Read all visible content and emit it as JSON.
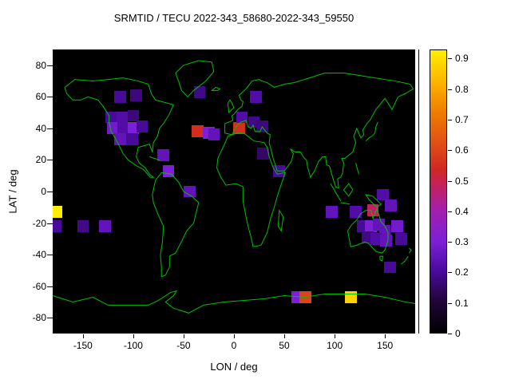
{
  "title": "SRMTID / TECU 2022-343_58680-2022-343_59550",
  "map": {
    "outline_color": "#00c000",
    "ocean_color": "#000000"
  },
  "palette": [
    [
      0.0,
      "#000000"
    ],
    [
      0.12,
      "#24053f"
    ],
    [
      0.22,
      "#4a0a9e"
    ],
    [
      0.32,
      "#7b1fd6"
    ],
    [
      0.43,
      "#a21fb0"
    ],
    [
      0.52,
      "#c42060"
    ],
    [
      0.58,
      "#d22822"
    ],
    [
      0.68,
      "#e25313"
    ],
    [
      0.78,
      "#ef7c00"
    ],
    [
      0.88,
      "#fcb000"
    ],
    [
      1.0,
      "#ffee00"
    ]
  ],
  "chart_data": {
    "type": "heatmap",
    "title": "SRMTID / TECU 2022-343_58680-2022-343_59550",
    "xlabel": "LON / deg",
    "ylabel": "LAT / deg",
    "xlim": [
      -180,
      180
    ],
    "ylim": [
      -90,
      90
    ],
    "x_ticks": [
      -150,
      -100,
      -50,
      0,
      50,
      100,
      150
    ],
    "y_ticks": [
      80,
      60,
      40,
      20,
      0,
      -20,
      -40,
      -60,
      -80
    ],
    "colorbar_ticks": [
      0,
      0.1,
      0.2,
      0.3,
      0.4,
      0.5,
      0.6,
      0.7,
      0.8,
      0.9
    ],
    "colorbar_range": [
      0,
      0.93
    ],
    "grid": false,
    "legend_position": "right-colorbar",
    "cell_size_deg": {
      "lon": 11.5,
      "lat": 7.5
    },
    "points": [
      {
        "lon": -113,
        "lat": 60,
        "value": 0.2
      },
      {
        "lon": -97,
        "lat": 61,
        "value": 0.17
      },
      {
        "lon": -34,
        "lat": 63,
        "value": 0.18
      },
      {
        "lon": 22,
        "lat": 60,
        "value": 0.22
      },
      {
        "lon": -122,
        "lat": 47,
        "value": 0.2
      },
      {
        "lon": -111,
        "lat": 47,
        "value": 0.22
      },
      {
        "lon": -100,
        "lat": 48,
        "value": 0.17
      },
      {
        "lon": -120,
        "lat": 40,
        "value": 0.28
      },
      {
        "lon": -110,
        "lat": 40,
        "value": 0.22
      },
      {
        "lon": -100,
        "lat": 40,
        "value": 0.3
      },
      {
        "lon": -91,
        "lat": 41,
        "value": 0.2
      },
      {
        "lon": -113,
        "lat": 33,
        "value": 0.25
      },
      {
        "lon": -101,
        "lat": 33,
        "value": 0.2
      },
      {
        "lon": -36,
        "lat": 38,
        "value": 0.55
      },
      {
        "lon": -25,
        "lat": 37,
        "value": 0.3
      },
      {
        "lon": -20,
        "lat": 36,
        "value": 0.25
      },
      {
        "lon": 5,
        "lat": 40,
        "value": 0.55
      },
      {
        "lon": 8,
        "lat": 47,
        "value": 0.22
      },
      {
        "lon": 20,
        "lat": 44,
        "value": 0.18
      },
      {
        "lon": 28,
        "lat": 41,
        "value": 0.17
      },
      {
        "lon": 29,
        "lat": 24,
        "value": 0.15
      },
      {
        "lon": -70,
        "lat": 23,
        "value": 0.25
      },
      {
        "lon": -65,
        "lat": 13,
        "value": 0.3
      },
      {
        "lon": 45,
        "lat": 13,
        "value": 0.2
      },
      {
        "lon": -44,
        "lat": 0,
        "value": 0.25
      },
      {
        "lon": -176,
        "lat": -13,
        "value": 0.95
      },
      {
        "lon": -177,
        "lat": -22,
        "value": 0.2
      },
      {
        "lon": -150,
        "lat": -22,
        "value": 0.18
      },
      {
        "lon": -128,
        "lat": -22,
        "value": 0.25
      },
      {
        "lon": 97,
        "lat": -13,
        "value": 0.25
      },
      {
        "lon": 121,
        "lat": -13,
        "value": 0.22
      },
      {
        "lon": 138,
        "lat": -12,
        "value": 0.48
      },
      {
        "lon": 148,
        "lat": -2,
        "value": 0.22
      },
      {
        "lon": 156,
        "lat": -9,
        "value": 0.25
      },
      {
        "lon": 128,
        "lat": -22,
        "value": 0.2
      },
      {
        "lon": 136,
        "lat": -22,
        "value": 0.3
      },
      {
        "lon": 144,
        "lat": -21,
        "value": 0.25
      },
      {
        "lon": 150,
        "lat": -25,
        "value": 0.25
      },
      {
        "lon": 133,
        "lat": -29,
        "value": 0.18
      },
      {
        "lon": 141,
        "lat": -30,
        "value": 0.22
      },
      {
        "lon": 151,
        "lat": -31,
        "value": 0.25
      },
      {
        "lon": 162,
        "lat": -22,
        "value": 0.28
      },
      {
        "lon": 166,
        "lat": -30,
        "value": 0.2
      },
      {
        "lon": 155,
        "lat": -48,
        "value": 0.2
      },
      {
        "lon": 63,
        "lat": -67,
        "value": 0.3
      },
      {
        "lon": 71,
        "lat": -67,
        "value": 0.6
      },
      {
        "lon": 116,
        "lat": -67,
        "value": 0.88
      }
    ]
  }
}
